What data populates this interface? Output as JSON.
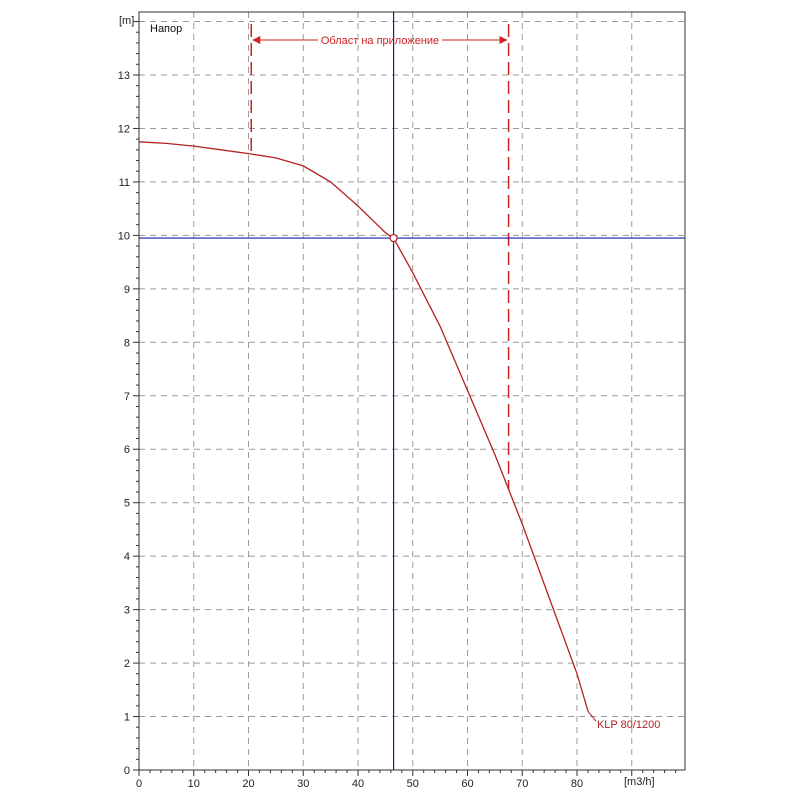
{
  "chart_data": {
    "type": "line",
    "title": "Напор",
    "xunit": "[m3/h]",
    "yunit": "[m]",
    "xlim": [
      0,
      100
    ],
    "ylim": [
      0,
      14
    ],
    "xticks": [
      0,
      10,
      20,
      30,
      40,
      50,
      60,
      70,
      80
    ],
    "yticks": [
      0,
      1,
      2,
      3,
      4,
      5,
      6,
      7,
      8,
      9,
      10,
      11,
      12,
      13
    ],
    "grid": true,
    "series": [
      {
        "name": "KLP 80/1200",
        "color": "#b22222",
        "x": [
          0,
          5,
          10,
          15,
          20,
          25,
          30,
          35,
          40,
          45,
          46.5,
          50,
          55,
          60,
          65,
          70,
          75,
          80,
          82
        ],
        "y": [
          11.75,
          11.72,
          11.67,
          11.6,
          11.53,
          11.45,
          11.3,
          11.0,
          10.55,
          10.05,
          9.95,
          9.3,
          8.3,
          7.1,
          5.9,
          4.6,
          3.2,
          1.8,
          1.1
        ]
      }
    ],
    "operating_point": {
      "x": 46.5,
      "y": 9.95,
      "color": "#1a1aa0"
    },
    "application_range": {
      "label": "Област на приложение",
      "x_min": 20.5,
      "x_max": 67.5,
      "color": "#cc2222"
    }
  }
}
